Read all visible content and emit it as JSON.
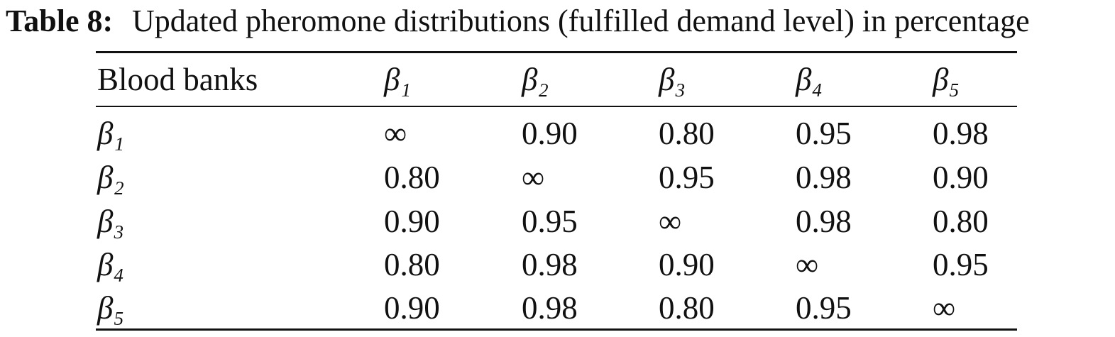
{
  "caption": {
    "label": "Table 8:",
    "text": "Updated pheromone distributions (fulfilled demand level) in percentage"
  },
  "table": {
    "header": [
      "Blood banks",
      "β₁",
      "β₂",
      "β₃",
      "β₄",
      "β₅"
    ],
    "rows": [
      [
        "β₁",
        "∞",
        "0.90",
        "0.80",
        "0.95",
        "0.98"
      ],
      [
        "β₂",
        "0.80",
        "∞",
        "0.95",
        "0.98",
        "0.90"
      ],
      [
        "β₃",
        "0.90",
        "0.95",
        "∞",
        "0.98",
        "0.80"
      ],
      [
        "β₄",
        "0.80",
        "0.98",
        "0.90",
        "∞",
        "0.95"
      ],
      [
        "β₅",
        "0.90",
        "0.98",
        "0.80",
        "0.95",
        "∞"
      ]
    ]
  }
}
